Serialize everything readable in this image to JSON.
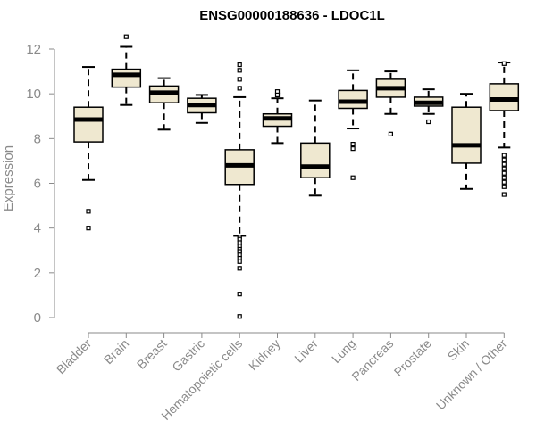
{
  "chart_data": {
    "type": "boxplot",
    "title": "ENSG00000188636 - LDOC1L",
    "xlabel": "",
    "ylabel": "Expression",
    "ylim": [
      0,
      12
    ],
    "yticks": [
      0,
      2,
      4,
      6,
      8,
      10,
      12
    ],
    "grid": false,
    "box_color": "#efe8d0",
    "categories": [
      "Bladder",
      "Brain",
      "Breast",
      "Gastric",
      "Hematopoietic cells",
      "Kidney",
      "Liver",
      "Lung",
      "Pancreas",
      "Prostate",
      "Skin",
      "Unknown / Other"
    ],
    "boxes": [
      {
        "whisker_low": 6.15,
        "q1": 7.85,
        "median": 8.85,
        "q3": 9.4,
        "whisker_high": 11.2,
        "outliers": [
          4.75,
          4.0
        ]
      },
      {
        "whisker_low": 9.5,
        "q1": 10.3,
        "median": 10.85,
        "q3": 11.1,
        "whisker_high": 12.1,
        "outliers": [
          12.55
        ]
      },
      {
        "whisker_low": 8.4,
        "q1": 9.6,
        "median": 10.05,
        "q3": 10.35,
        "whisker_high": 10.7,
        "outliers": []
      },
      {
        "whisker_low": 8.7,
        "q1": 9.15,
        "median": 9.5,
        "q3": 9.8,
        "whisker_high": 9.95,
        "outliers": []
      },
      {
        "whisker_low": 3.65,
        "q1": 5.95,
        "median": 6.8,
        "q3": 7.5,
        "whisker_high": 9.85,
        "outliers": [
          11.3,
          11.05,
          10.65,
          10.25,
          3.6,
          3.5,
          3.35,
          3.2,
          3.05,
          2.95,
          2.8,
          2.65,
          2.5,
          2.2,
          1.05,
          0.05
        ]
      },
      {
        "whisker_low": 7.8,
        "q1": 8.55,
        "median": 8.9,
        "q3": 9.1,
        "whisker_high": 9.8,
        "outliers": [
          10.1,
          9.95
        ]
      },
      {
        "whisker_low": 5.45,
        "q1": 6.25,
        "median": 6.75,
        "q3": 7.8,
        "whisker_high": 9.7,
        "outliers": []
      },
      {
        "whisker_low": 8.45,
        "q1": 9.35,
        "median": 9.65,
        "q3": 10.15,
        "whisker_high": 11.05,
        "outliers": [
          7.75,
          7.55,
          6.25
        ]
      },
      {
        "whisker_low": 9.1,
        "q1": 9.85,
        "median": 10.25,
        "q3": 10.65,
        "whisker_high": 11.0,
        "outliers": [
          8.2
        ]
      },
      {
        "whisker_low": 9.1,
        "q1": 9.45,
        "median": 9.6,
        "q3": 9.85,
        "whisker_high": 10.2,
        "outliers": [
          8.75
        ]
      },
      {
        "whisker_low": 5.75,
        "q1": 6.9,
        "median": 7.7,
        "q3": 9.4,
        "whisker_high": 10.0,
        "outliers": []
      },
      {
        "whisker_low": 7.6,
        "q1": 9.25,
        "median": 9.75,
        "q3": 10.45,
        "whisker_high": 11.4,
        "outliers": [
          11.35,
          7.25,
          7.05,
          6.85,
          6.65,
          6.45,
          6.25,
          6.05,
          5.85,
          5.5
        ]
      }
    ]
  }
}
